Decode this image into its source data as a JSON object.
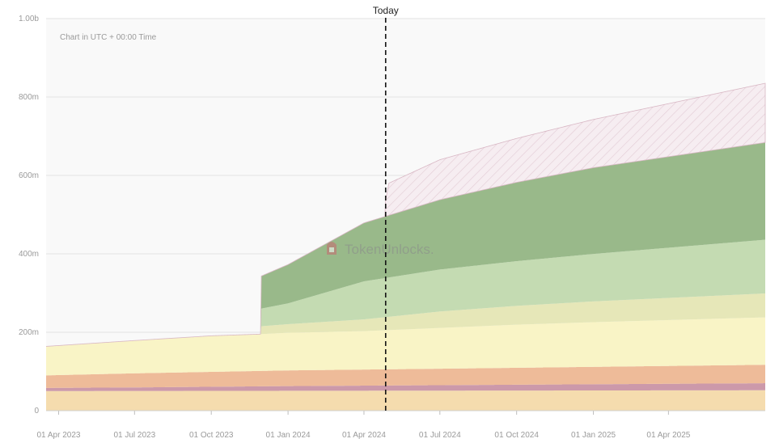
{
  "chart_data": {
    "type": "area",
    "stacked": true,
    "note": "Chart in UTC + 00:00 Time",
    "watermark": "TokenUnlocks.",
    "today_marker": {
      "label": "Today",
      "x": "2024-04-27"
    },
    "ylim": [
      0,
      1000
    ],
    "y_ticks": [
      {
        "value": 0,
        "label": "0"
      },
      {
        "value": 200,
        "label": "200m"
      },
      {
        "value": 400,
        "label": "400m"
      },
      {
        "value": 600,
        "label": "600m"
      },
      {
        "value": 800,
        "label": "800m"
      },
      {
        "value": 1000,
        "label": "1.00b"
      }
    ],
    "x_ticks": [
      {
        "value": "2023-04-01",
        "label": "01 Apr 2023"
      },
      {
        "value": "2023-07-01",
        "label": "01 Jul 2023"
      },
      {
        "value": "2023-10-01",
        "label": "01 Oct 2023"
      },
      {
        "value": "2024-01-01",
        "label": "01 Jan 2024"
      },
      {
        "value": "2024-04-01",
        "label": "01 Apr 2024"
      },
      {
        "value": "2024-07-01",
        "label": "01 Jul 2024"
      },
      {
        "value": "2024-10-01",
        "label": "01 Oct 2024"
      },
      {
        "value": "2025-01-01",
        "label": "01 Jan 2025"
      },
      {
        "value": "2025-04-01",
        "label": "01 Apr 2025"
      }
    ],
    "grid": true,
    "x_range": [
      "2023-03-17",
      "2025-07-26"
    ],
    "series": [
      {
        "color": "#f5dcae",
        "values": [
          [
            "2023-03-17",
            50
          ],
          [
            "2025-07-26",
            52
          ]
        ]
      },
      {
        "color": "#cc99aa",
        "values": [
          [
            "2023-03-17",
            8
          ],
          [
            "2023-07-01",
            9
          ],
          [
            "2024-01-01",
            12
          ],
          [
            "2025-07-26",
            18
          ]
        ]
      },
      {
        "color": "#eebb99",
        "values": [
          [
            "2023-03-17",
            32
          ],
          [
            "2023-07-01",
            36
          ],
          [
            "2024-01-01",
            40
          ],
          [
            "2024-07-01",
            42
          ],
          [
            "2025-07-26",
            47
          ]
        ]
      },
      {
        "color": "#f9f4c6",
        "values": [
          [
            "2023-03-17",
            74
          ],
          [
            "2023-10-01",
            92
          ],
          [
            "2023-11-30",
            94
          ],
          [
            "2024-01-01",
            96
          ],
          [
            "2024-04-01",
            98
          ],
          [
            "2024-07-01",
            104
          ],
          [
            "2024-10-01",
            110
          ],
          [
            "2025-01-01",
            114
          ],
          [
            "2025-07-26",
            121
          ]
        ]
      },
      {
        "color": "#e6e7b8",
        "values": [
          [
            "2023-03-17",
            0
          ],
          [
            "2023-11-29",
            0
          ],
          [
            "2023-11-30",
            20
          ],
          [
            "2024-01-01",
            22
          ],
          [
            "2024-04-01",
            30
          ],
          [
            "2024-07-01",
            42
          ],
          [
            "2024-10-01",
            48
          ],
          [
            "2025-01-01",
            53
          ],
          [
            "2025-07-26",
            61
          ]
        ]
      },
      {
        "color": "#c4dbb2",
        "values": [
          [
            "2023-03-17",
            0
          ],
          [
            "2023-11-29",
            0
          ],
          [
            "2023-11-30",
            45
          ],
          [
            "2024-01-01",
            53
          ],
          [
            "2024-04-01",
            97
          ],
          [
            "2024-07-01",
            107
          ],
          [
            "2024-10-01",
            114
          ],
          [
            "2025-01-01",
            121
          ],
          [
            "2025-07-26",
            137
          ]
        ]
      },
      {
        "color": "#99b98a",
        "values": [
          [
            "2023-03-17",
            0
          ],
          [
            "2023-11-29",
            0
          ],
          [
            "2023-11-30",
            83
          ],
          [
            "2024-01-01",
            99
          ],
          [
            "2024-04-01",
            149
          ],
          [
            "2024-07-01",
            178
          ],
          [
            "2024-10-01",
            201
          ],
          [
            "2025-01-01",
            220
          ],
          [
            "2025-07-26",
            248
          ]
        ]
      },
      {
        "color": "#f1e5ea",
        "hatched": true,
        "values": [
          [
            "2023-03-17",
            0
          ],
          [
            "2024-04-26",
            0
          ],
          [
            "2024-04-27",
            42
          ],
          [
            "2024-05-01",
            82
          ],
          [
            "2024-07-01",
            102
          ],
          [
            "2024-10-01",
            112
          ],
          [
            "2025-01-01",
            123
          ],
          [
            "2025-07-26",
            151
          ]
        ]
      }
    ]
  }
}
